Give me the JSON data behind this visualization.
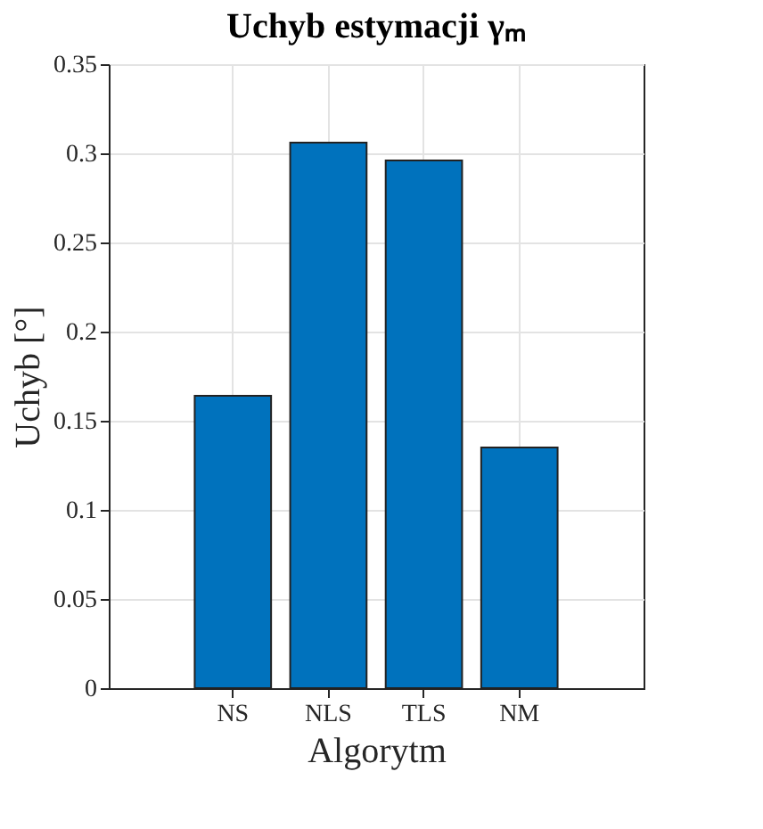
{
  "chart_data": {
    "type": "bar",
    "title": "Uchyb estymacji γₘ",
    "xlabel": "Algorytm",
    "ylabel": "Uchyb [°]",
    "categories": [
      "NS",
      "NLS",
      "TLS",
      "NM"
    ],
    "values": [
      0.164,
      0.306,
      0.296,
      0.135
    ],
    "color": "#0072bd",
    "ylim": [
      0,
      0.35
    ],
    "yticks": [
      0,
      0.05,
      0.1,
      0.15,
      0.2,
      0.25,
      0.3,
      0.35
    ],
    "grid": true
  }
}
